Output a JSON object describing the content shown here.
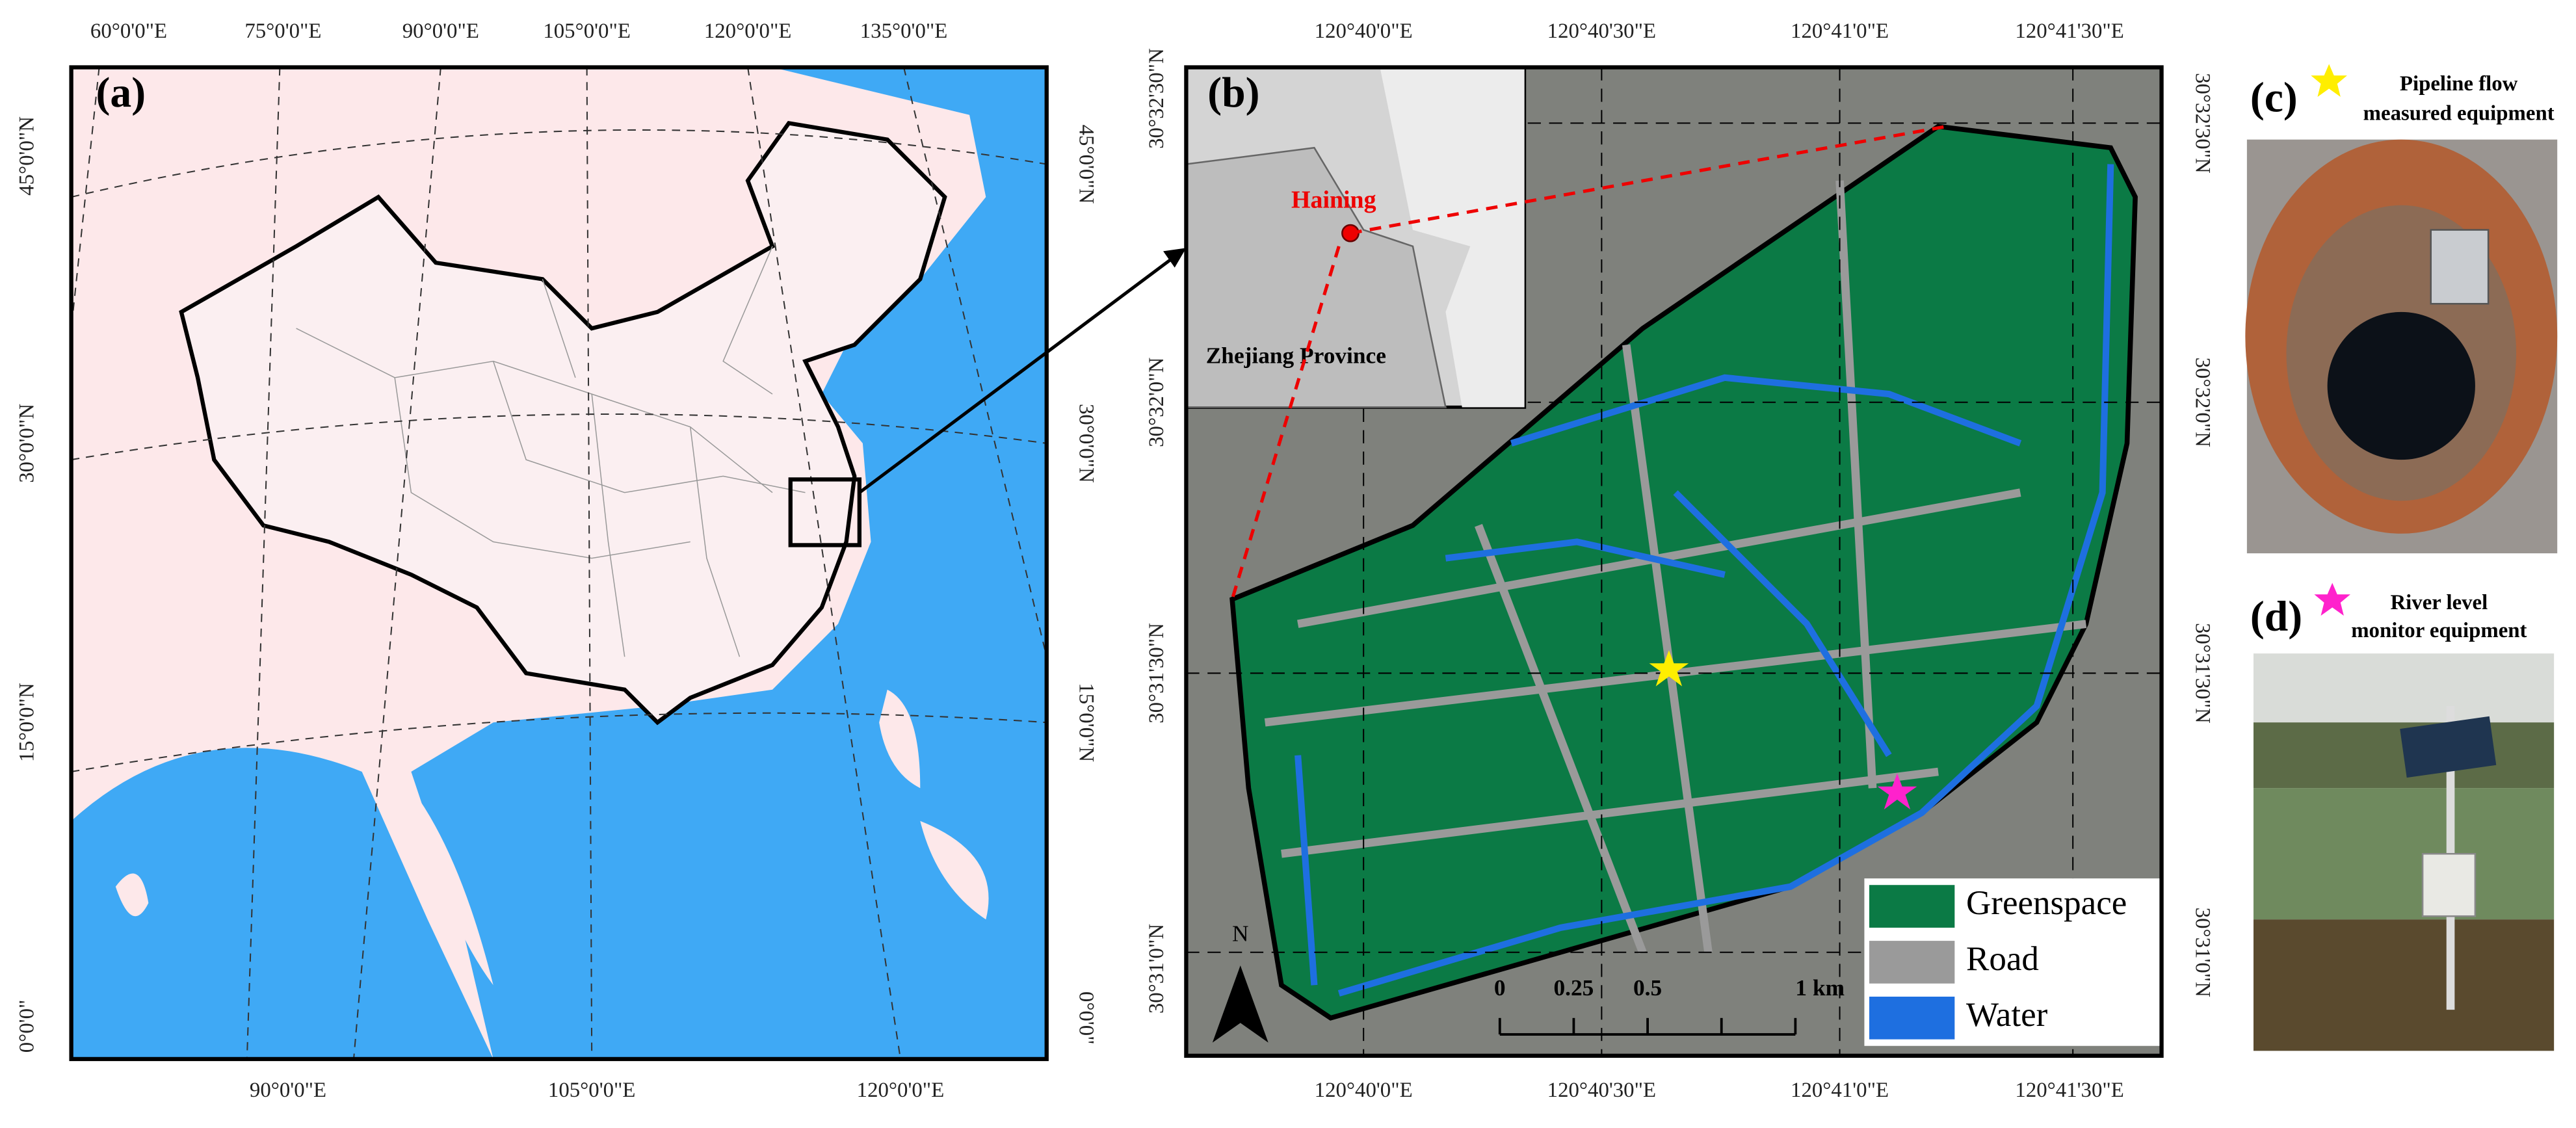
{
  "panels": [
    {
      "label": "(a)",
      "top_ticks": [
        "60°0'0\"E",
        "75°0'0\"E",
        "90°0'0\"E",
        "105°0'0\"E",
        "120°0'0\"E",
        "135°0'0\"E"
      ],
      "left_ticks": [
        "45°0'0\"N",
        "30°0'0\"N",
        "15°0'0\"N",
        "0°0'0\""
      ],
      "right_ticks": [
        "45°0'0\"N",
        "30°0'0\"N",
        "15°0'0\"N",
        "0°0'0\""
      ],
      "bottom_ticks": [
        "90°0'0\"E",
        "105°0'0\"E",
        "120°0'0\"E"
      ]
    },
    {
      "label": "(b)",
      "top_ticks": [
        "120°40'0\"E",
        "120°40'30\"E",
        "120°41'0\"E",
        "120°41'30\"E"
      ],
      "bottom_ticks": [
        "120°40'0\"E",
        "120°40'30\"E",
        "120°41'0\"E",
        "120°41'30\"E"
      ],
      "left_ticks": [
        "30°32'30\"N",
        "30°32'0\"N",
        "30°31'30\"N",
        "30°31'0\"N"
      ],
      "right_ticks": [
        "30°32'30\"N",
        "30°32'0\"N",
        "30°31'30\"N",
        "30°31'0\"N"
      ],
      "inset": {
        "city": "Haining",
        "province": "Zhejiang Province"
      },
      "legend": [
        "Greenspace",
        "Road",
        "Water"
      ],
      "scale_bar": [
        "0",
        "0.25",
        "0.5",
        "1 km"
      ],
      "north": "N"
    },
    {
      "label": "(c)",
      "caption": [
        "Pipeline flow",
        "measured equipment"
      ]
    },
    {
      "label": "(d)",
      "caption": [
        "River level",
        "monitor equipment"
      ]
    }
  ]
}
